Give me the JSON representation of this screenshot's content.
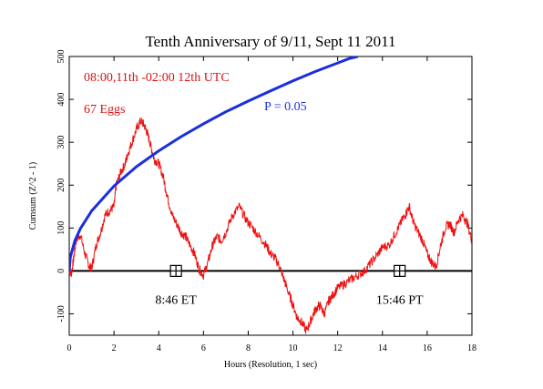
{
  "chart_data": {
    "type": "line",
    "title": "Tenth Anniversary of 9/11, Sept 11 2011",
    "xlabel": "Hours (Resolution, 1 sec)",
    "ylabel": "Cumsum (Z^2 - 1)",
    "xlim": [
      0,
      18
    ],
    "ylim": [
      -150,
      500
    ],
    "x_ticks": [
      0,
      2,
      4,
      6,
      8,
      10,
      12,
      14,
      16,
      18
    ],
    "y_ticks": [
      -100,
      0,
      100,
      200,
      300,
      400,
      500
    ],
    "grid": false,
    "annotations": {
      "time_range": "08:00,11th -02:00 12th UTC",
      "eggs": "67 Eggs",
      "probability": "P = 0.05"
    },
    "series": [
      {
        "color": "#ee1111",
        "x": [
          0,
          0.1,
          0.2,
          0.3,
          0.5,
          0.7,
          0.9,
          1.0,
          1.2,
          1.4,
          1.6,
          1.8,
          2.0,
          2.1,
          2.3,
          2.5,
          2.6,
          2.8,
          3.0,
          3.2,
          3.35,
          3.5,
          3.65,
          3.8,
          4.0,
          4.2,
          4.4,
          4.6,
          4.8,
          5.0,
          5.2,
          5.4,
          5.6,
          5.8,
          6.0,
          6.2,
          6.4,
          6.6,
          6.8,
          7.0,
          7.3,
          7.6,
          7.9,
          8.2,
          8.5,
          8.8,
          9.0,
          9.2,
          9.4,
          9.6,
          9.8,
          10.0,
          10.2,
          10.4,
          10.6,
          10.8,
          11.0,
          11.2,
          11.4,
          11.6,
          11.8,
          12.0,
          12.3,
          12.6,
          12.9,
          13.2,
          13.5,
          13.8,
          14.0,
          14.3,
          14.6,
          14.8,
          15.0,
          15.2,
          15.4,
          15.6,
          15.8,
          16.0,
          16.2,
          16.4,
          16.6,
          16.8,
          17.0,
          17.2,
          17.4,
          17.6,
          17.8,
          18.0
        ],
        "y": [
          0,
          -5,
          30,
          70,
          85,
          40,
          10,
          5,
          60,
          90,
          130,
          140,
          150,
          200,
          230,
          250,
          270,
          300,
          330,
          350,
          340,
          320,
          290,
          260,
          250,
          220,
          170,
          130,
          110,
          90,
          80,
          60,
          40,
          5,
          -10,
          20,
          60,
          80,
          70,
          90,
          130,
          150,
          120,
          100,
          80,
          60,
          40,
          30,
          10,
          -20,
          -50,
          -80,
          -110,
          -120,
          -140,
          -115,
          -90,
          -80,
          -100,
          -70,
          -55,
          -40,
          -30,
          -20,
          -10,
          0,
          20,
          40,
          55,
          60,
          90,
          110,
          130,
          150,
          110,
          90,
          70,
          40,
          20,
          10,
          60,
          100,
          110,
          90,
          120,
          130,
          110,
          70
        ]
      },
      {
        "color": "#1a2ee0",
        "x": [
          0,
          0.05,
          0.25,
          0.5,
          1,
          2,
          3,
          4,
          5,
          6,
          7,
          8,
          9,
          10,
          11,
          12,
          12.5,
          12.9
        ],
        "y": [
          0,
          32,
          70,
          99,
          140,
          198,
          243,
          280,
          313,
          343,
          371,
          396,
          420,
          443,
          465,
          485,
          495,
          500
        ]
      }
    ],
    "markers": [
      {
        "label": "8:46 ET",
        "x": 4.77,
        "y": 0
      },
      {
        "label": "15:46 PT",
        "x": 14.77,
        "y": 0
      }
    ]
  }
}
